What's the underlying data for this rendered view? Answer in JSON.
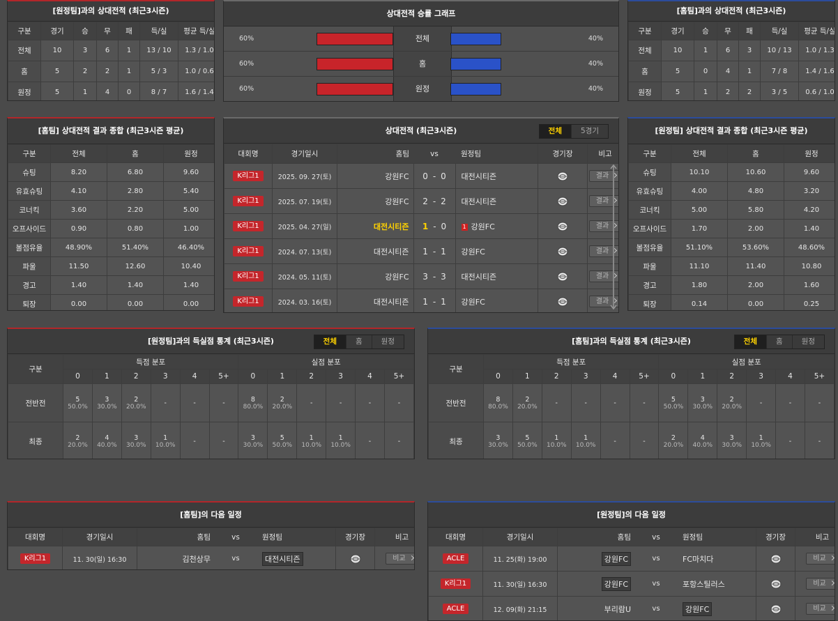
{
  "away_record": {
    "title": "[원정팀]과의 상대전적 (최근3시즌)",
    "columns": [
      "구분",
      "경기",
      "승",
      "무",
      "패",
      "득/실",
      "평균 득/실"
    ],
    "rows": [
      [
        "전체",
        "10",
        "3",
        "6",
        "1",
        "13 / 10",
        "1.3 / 1.0"
      ],
      [
        "홈",
        "5",
        "2",
        "2",
        "1",
        "5 / 3",
        "1.0 / 0.6"
      ],
      [
        "원정",
        "5",
        "1",
        "4",
        "0",
        "8 / 7",
        "1.6 / 1.4"
      ]
    ]
  },
  "win_graph": {
    "title": "상대전적 승률 그래프",
    "rows": [
      {
        "label": "전체",
        "home": {
          "value": 60,
          "label": "60%"
        },
        "away": {
          "value": 40,
          "label": "40%"
        }
      },
      {
        "label": "홈",
        "home": {
          "value": 60,
          "label": "60%"
        },
        "away": {
          "value": 40,
          "label": "40%"
        }
      },
      {
        "label": "원정",
        "home": {
          "value": 60,
          "label": "60%"
        },
        "away": {
          "value": 40,
          "label": "40%"
        }
      }
    ],
    "home_color": "#c8242a",
    "away_color": "#2a52c8"
  },
  "home_record": {
    "title": "[홈팀]과의 상대전적 (최근3시즌)",
    "columns": [
      "구분",
      "경기",
      "승",
      "무",
      "패",
      "득/실",
      "평균 득/실"
    ],
    "rows": [
      [
        "전체",
        "10",
        "1",
        "6",
        "3",
        "10 / 13",
        "1.0 / 1.3"
      ],
      [
        "홈",
        "5",
        "0",
        "4",
        "1",
        "7 / 8",
        "1.4 / 1.6"
      ],
      [
        "원정",
        "5",
        "1",
        "2",
        "2",
        "3 / 5",
        "0.6 / 1.0"
      ]
    ]
  },
  "home_summary": {
    "title": "[홈팀] 상대전적 결과 종합 (최근3시즌 평균)",
    "columns": [
      "구분",
      "전체",
      "홈",
      "원정"
    ],
    "rows": [
      [
        "슈팅",
        "8.20",
        "6.80",
        "9.60"
      ],
      [
        "유효슈팅",
        "4.10",
        "2.80",
        "5.40"
      ],
      [
        "코너킥",
        "3.60",
        "2.20",
        "5.00"
      ],
      [
        "오프사이드",
        "0.90",
        "0.80",
        "1.00"
      ],
      [
        "볼점유율",
        "48.90%",
        "51.40%",
        "46.40%"
      ],
      [
        "파울",
        "11.50",
        "12.60",
        "10.40"
      ],
      [
        "경고",
        "1.40",
        "1.40",
        "1.40"
      ],
      [
        "퇴장",
        "0.00",
        "0.00",
        "0.00"
      ]
    ]
  },
  "matches": {
    "title": "상대전적 (최근3시즌)",
    "tabs": [
      "전체",
      "5경기"
    ],
    "active_tab": 0,
    "columns": [
      "대회명",
      "경기일시",
      "홈팀",
      "vs",
      "원정팀",
      "경기장",
      "비고"
    ],
    "score_sep": "-",
    "button": "결과",
    "rows": [
      {
        "league": "K리그1",
        "date": "2025. 09. 27(토)",
        "home": "강원FC",
        "home_score": "0",
        "away_score": "0",
        "away": "대전시티즌"
      },
      {
        "league": "K리그1",
        "date": "2025. 07. 19(토)",
        "home": "강원FC",
        "home_score": "2",
        "away_score": "2",
        "away": "대전시티즌"
      },
      {
        "league": "K리그1",
        "date": "2025. 04. 27(일)",
        "home": "대전시티즌",
        "home_score": "1",
        "away_score": "0",
        "away": "강원FC",
        "winner": "home",
        "red_card": "1"
      },
      {
        "league": "K리그1",
        "date": "2024. 07. 13(토)",
        "home": "대전시티즌",
        "home_score": "1",
        "away_score": "1",
        "away": "강원FC"
      },
      {
        "league": "K리그1",
        "date": "2024. 05. 11(토)",
        "home": "강원FC",
        "home_score": "3",
        "away_score": "3",
        "away": "대전시티즌"
      },
      {
        "league": "K리그1",
        "date": "2024. 03. 16(토)",
        "home": "대전시티즌",
        "home_score": "1",
        "away_score": "1",
        "away": "강원FC"
      }
    ]
  },
  "away_summary": {
    "title": "[원정팀] 상대전적 결과 종합 (최근3시즌 평균)",
    "columns": [
      "구분",
      "전체",
      "홈",
      "원정"
    ],
    "rows": [
      [
        "슈팅",
        "10.10",
        "10.60",
        "9.60"
      ],
      [
        "유효슈팅",
        "4.00",
        "4.80",
        "3.20"
      ],
      [
        "코너킥",
        "5.00",
        "5.80",
        "4.20"
      ],
      [
        "오프사이드",
        "1.70",
        "2.00",
        "1.40"
      ],
      [
        "볼점유율",
        "51.10%",
        "53.60%",
        "48.60%"
      ],
      [
        "파울",
        "11.10",
        "11.40",
        "10.80"
      ],
      [
        "경고",
        "1.80",
        "2.00",
        "1.60"
      ],
      [
        "퇴장",
        "0.14",
        "0.00",
        "0.25"
      ]
    ]
  },
  "away_goals": {
    "title": "[원정팀]과의 득실점 통계 (최근3시즌)",
    "tabs": [
      "전체",
      "홈",
      "원정"
    ],
    "active_tab": 0,
    "label_header": "구분",
    "groups": [
      "득점 분포",
      "실점 분포"
    ],
    "buckets": [
      "0",
      "1",
      "2",
      "3",
      "4",
      "5+"
    ],
    "rows": [
      {
        "label": "전반전",
        "cells": [
          [
            "5",
            "50.0%"
          ],
          [
            "3",
            "30.0%"
          ],
          [
            "2",
            "20.0%"
          ],
          [
            "-"
          ],
          [
            "-"
          ],
          [
            "-"
          ],
          [
            "8",
            "80.0%"
          ],
          [
            "2",
            "20.0%"
          ],
          [
            "-"
          ],
          [
            "-"
          ],
          [
            "-"
          ],
          [
            "-"
          ]
        ]
      },
      {
        "label": "최종",
        "cells": [
          [
            "2",
            "20.0%"
          ],
          [
            "4",
            "40.0%"
          ],
          [
            "3",
            "30.0%"
          ],
          [
            "1",
            "10.0%"
          ],
          [
            "-"
          ],
          [
            "-"
          ],
          [
            "3",
            "30.0%"
          ],
          [
            "5",
            "50.0%"
          ],
          [
            "1",
            "10.0%"
          ],
          [
            "1",
            "10.0%"
          ],
          [
            "-"
          ],
          [
            "-"
          ]
        ]
      }
    ]
  },
  "home_goals": {
    "title": "[홈팀]과의 득실점 통계 (최근3시즌)",
    "tabs": [
      "전체",
      "홈",
      "원정"
    ],
    "active_tab": 0,
    "label_header": "구분",
    "groups": [
      "득점 분포",
      "실점 분포"
    ],
    "buckets": [
      "0",
      "1",
      "2",
      "3",
      "4",
      "5+"
    ],
    "rows": [
      {
        "label": "전반전",
        "cells": [
          [
            "8",
            "80.0%"
          ],
          [
            "2",
            "20.0%"
          ],
          [
            "-"
          ],
          [
            "-"
          ],
          [
            "-"
          ],
          [
            "-"
          ],
          [
            "5",
            "50.0%"
          ],
          [
            "3",
            "30.0%"
          ],
          [
            "2",
            "20.0%"
          ],
          [
            "-"
          ],
          [
            "-"
          ],
          [
            "-"
          ]
        ]
      },
      {
        "label": "최종",
        "cells": [
          [
            "3",
            "30.0%"
          ],
          [
            "5",
            "50.0%"
          ],
          [
            "1",
            "10.0%"
          ],
          [
            "1",
            "10.0%"
          ],
          [
            "-"
          ],
          [
            "-"
          ],
          [
            "2",
            "20.0%"
          ],
          [
            "4",
            "40.0%"
          ],
          [
            "3",
            "30.0%"
          ],
          [
            "1",
            "10.0%"
          ],
          [
            "-"
          ],
          [
            "-"
          ]
        ]
      }
    ]
  },
  "home_next": {
    "title": "[홈팀]의 다음 일정",
    "columns": [
      "대회명",
      "경기일시",
      "홈팀",
      "vs",
      "원정팀",
      "경기장",
      "비고"
    ],
    "vs": "vs",
    "button": "비교",
    "rows": [
      {
        "league": "K리그1",
        "date": "11. 30(일) 16:30",
        "home": "김천상무",
        "away": "대전시티즌",
        "highlight": "away"
      }
    ]
  },
  "away_next": {
    "title": "[원정팀]의 다음 일정",
    "columns": [
      "대회명",
      "경기일시",
      "홈팀",
      "vs",
      "원정팀",
      "경기장",
      "비고"
    ],
    "vs": "vs",
    "button": "비교",
    "rows": [
      {
        "league": "ACLE",
        "date": "11. 25(화) 19:00",
        "home": "강원FC",
        "away": "FC마치다",
        "highlight": "home"
      },
      {
        "league": "K리그1",
        "date": "11. 30(일) 16:30",
        "home": "강원FC",
        "away": "포항스틸러스",
        "highlight": "home"
      },
      {
        "league": "ACLE",
        "date": "12. 09(화) 21:15",
        "home": "부리람U",
        "away": "강원FC",
        "highlight": "away"
      }
    ]
  }
}
